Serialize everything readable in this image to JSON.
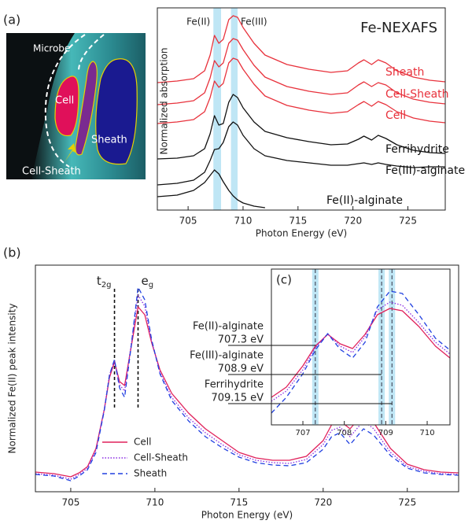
{
  "panels": [
    "(a)",
    "(b)",
    "(c)"
  ],
  "image": {
    "labels": [
      "Microbe",
      "Cell",
      "Sheath",
      "Cell-Sheath"
    ]
  },
  "chart_data": [
    {
      "type": "line",
      "title": "Fe-NEXAFS",
      "xlabel": "Photon Energy (eV)",
      "ylabel": "Normalized absorption",
      "xlim": [
        702.2,
        728.4
      ],
      "ylim": [
        0,
        25.7
      ],
      "xticks": [
        705,
        710,
        715,
        720,
        725
      ],
      "bands": [
        {
          "range": [
            707.3,
            708.0
          ],
          "label": "Fe(II)"
        },
        {
          "range": [
            708.9,
            709.5
          ],
          "label": "Fe(III)"
        }
      ],
      "x": [
        702.2,
        704,
        705.5,
        706.5,
        707,
        707.4,
        707.8,
        708.2,
        708.7,
        709.1,
        709.5,
        710,
        711,
        712,
        714,
        716,
        718,
        719.5,
        720.5,
        721,
        721.7,
        722.3,
        723,
        724,
        725.5,
        727,
        728.4
      ],
      "series": [
        {
          "name": "Sheath",
          "color": "#e8323c",
          "values": [
            16.2,
            16.4,
            16.7,
            17.7,
            19.7,
            22.2,
            21.2,
            21.7,
            24.2,
            24.7,
            24.5,
            23.2,
            21.2,
            19.7,
            18.5,
            17.9,
            17.5,
            17.7,
            18.7,
            19.1,
            18.5,
            19.1,
            18.7,
            17.7,
            16.9,
            16.5,
            16.3
          ]
        },
        {
          "name": "Cell-Sheath",
          "color": "#e8323c",
          "values": [
            13.4,
            13.6,
            13.9,
            14.9,
            16.8,
            19.0,
            18.2,
            18.7,
            21.2,
            21.8,
            21.6,
            20.4,
            18.4,
            16.9,
            15.7,
            15.1,
            14.7,
            14.9,
            15.9,
            16.3,
            15.7,
            16.2,
            15.9,
            14.9,
            14.1,
            13.7,
            13.5
          ]
        },
        {
          "name": "Cell",
          "color": "#e8323c",
          "values": [
            11.0,
            11.2,
            11.5,
            12.5,
            14.3,
            16.4,
            15.6,
            16.1,
            18.7,
            19.3,
            19.1,
            17.9,
            16.0,
            14.5,
            13.3,
            12.7,
            12.3,
            12.5,
            13.4,
            13.8,
            13.2,
            13.8,
            13.4,
            12.5,
            11.7,
            11.3,
            11.1
          ]
        },
        {
          "name": "Ferrihydrite",
          "color": "#111111",
          "values": [
            6.5,
            6.6,
            6.9,
            7.8,
            9.7,
            12.0,
            10.8,
            11.0,
            13.7,
            14.7,
            14.3,
            13.0,
            11.2,
            10.0,
            9.2,
            8.7,
            8.3,
            8.4,
            9.0,
            9.4,
            8.9,
            9.5,
            9.1,
            8.3,
            7.6,
            7.3,
            7.2
          ]
        },
        {
          "name": "Fe(III)-alginate",
          "color": "#111111",
          "values": [
            3.2,
            3.4,
            3.8,
            4.8,
            6.3,
            7.7,
            7.8,
            8.6,
            10.6,
            11.2,
            10.8,
            9.5,
            7.8,
            6.9,
            6.3,
            6.0,
            5.7,
            5.7,
            5.9,
            6.0,
            5.8,
            6.0,
            5.8,
            5.6,
            5.4,
            5.5,
            5.5
          ]
        },
        {
          "name": "Fe(II)-alginate",
          "color": "#111111",
          "values": [
            1.7,
            1.9,
            2.5,
            3.5,
            4.4,
            5.1,
            4.6,
            3.6,
            2.5,
            1.8,
            1.3,
            0.9,
            0.5,
            0.3,
            null,
            null,
            null,
            null,
            null,
            null,
            null,
            null,
            null,
            null,
            null,
            null,
            null
          ]
        }
      ]
    },
    {
      "type": "line",
      "xlabel": "Photon Energy (eV)",
      "ylabel": "Normalized Fe(II) peak intensity",
      "xlim": [
        702.9,
        728.05
      ],
      "ylim": [
        0,
        28.8
      ],
      "xticks": [
        705,
        710,
        715,
        720,
        725
      ],
      "vlines": [
        {
          "value": 707.6,
          "label": "t",
          "sub": "2g"
        },
        {
          "value": 709.0,
          "label": "e",
          "sub": "g"
        }
      ],
      "x": [
        702.9,
        704,
        705,
        705.5,
        706,
        706.5,
        707,
        707.3,
        707.6,
        707.9,
        708.2,
        708.6,
        709,
        709.4,
        709.8,
        710.3,
        711,
        712,
        713,
        714,
        715,
        716,
        717,
        718,
        719,
        720,
        720.5,
        721,
        721.6,
        722.4,
        723,
        724,
        725,
        726,
        727,
        728.05
      ],
      "series": [
        {
          "name": "Cell",
          "color": "#e0205a",
          "dash": "solid",
          "values": [
            2.5,
            2.3,
            1.9,
            2.4,
            3.2,
            5.5,
            10.5,
            14.5,
            16.5,
            14.0,
            13.5,
            18.5,
            23.5,
            22.5,
            19.0,
            15.5,
            12.5,
            10.0,
            8.0,
            6.5,
            5.0,
            4.3,
            4.0,
            4.0,
            4.5,
            6.5,
            8.5,
            9.0,
            8.0,
            10.0,
            8.8,
            5.5,
            3.5,
            2.8,
            2.5,
            2.4
          ]
        },
        {
          "name": "Cell-Sheath",
          "color": "#8a2be2",
          "dash": "dotted",
          "values": [
            2.3,
            2.1,
            1.6,
            2.2,
            3.0,
            5.3,
            10.6,
            14.8,
            16.7,
            13.6,
            12.8,
            18.8,
            25.0,
            23.6,
            19.2,
            15.2,
            12.0,
            9.4,
            7.5,
            6.0,
            4.7,
            4.0,
            3.7,
            3.6,
            4.1,
            6.0,
            7.8,
            8.2,
            7.0,
            9.0,
            8.0,
            5.0,
            3.2,
            2.6,
            2.3,
            2.2
          ]
        },
        {
          "name": "Sheath",
          "color": "#2040e0",
          "dash": "dashed",
          "values": [
            2.2,
            2.0,
            1.4,
            2.0,
            2.8,
            5.0,
            10.4,
            14.8,
            16.8,
            13.2,
            12.0,
            18.6,
            26.0,
            24.4,
            19.4,
            15.0,
            11.6,
            9.0,
            7.0,
            5.6,
            4.4,
            3.7,
            3.4,
            3.3,
            3.7,
            5.4,
            7.0,
            7.5,
            6.0,
            8.0,
            7.2,
            4.6,
            3.0,
            2.4,
            2.2,
            2.1
          ]
        }
      ]
    },
    {
      "type": "line",
      "inset": true,
      "xlim": [
        706.24,
        710.55
      ],
      "ylim": [
        0,
        19.8
      ],
      "xticks": [
        707,
        708,
        709,
        710
      ],
      "marks": [
        {
          "value": 707.3,
          "label": "Fe(II)-alginate",
          "value_label": "707.3 eV"
        },
        {
          "value": 708.9,
          "label": "Fe(III)-alginate",
          "value_label": "708.9 eV"
        },
        {
          "value": 709.15,
          "label": "Ferrihydrite",
          "value_label": "709.15 eV"
        }
      ],
      "x": [
        706.24,
        706.6,
        707,
        707.3,
        707.6,
        707.9,
        708.2,
        708.5,
        708.8,
        709.1,
        709.4,
        709.8,
        710.2,
        710.55
      ],
      "series": [
        {
          "name": "Cell",
          "color": "#e0205a",
          "dash": "solid",
          "values": [
            3.5,
            4.8,
            7.5,
            10.0,
            11.5,
            10.3,
            9.7,
            11.5,
            14.0,
            14.8,
            14.5,
            12.5,
            10.0,
            8.5
          ]
        },
        {
          "name": "Cell-Sheath",
          "color": "#8a2be2",
          "dash": "dotted",
          "values": [
            3.0,
            4.3,
            7.0,
            9.8,
            11.6,
            10.0,
            9.2,
            11.2,
            14.6,
            15.6,
            15.2,
            13.0,
            10.5,
            9.0
          ]
        },
        {
          "name": "Sheath",
          "color": "#2040e0",
          "dash": "dashed",
          "values": [
            1.5,
            3.5,
            6.5,
            9.5,
            11.6,
            9.6,
            8.5,
            10.5,
            15.0,
            17.0,
            16.7,
            14.0,
            11.0,
            9.5
          ]
        }
      ]
    }
  ]
}
